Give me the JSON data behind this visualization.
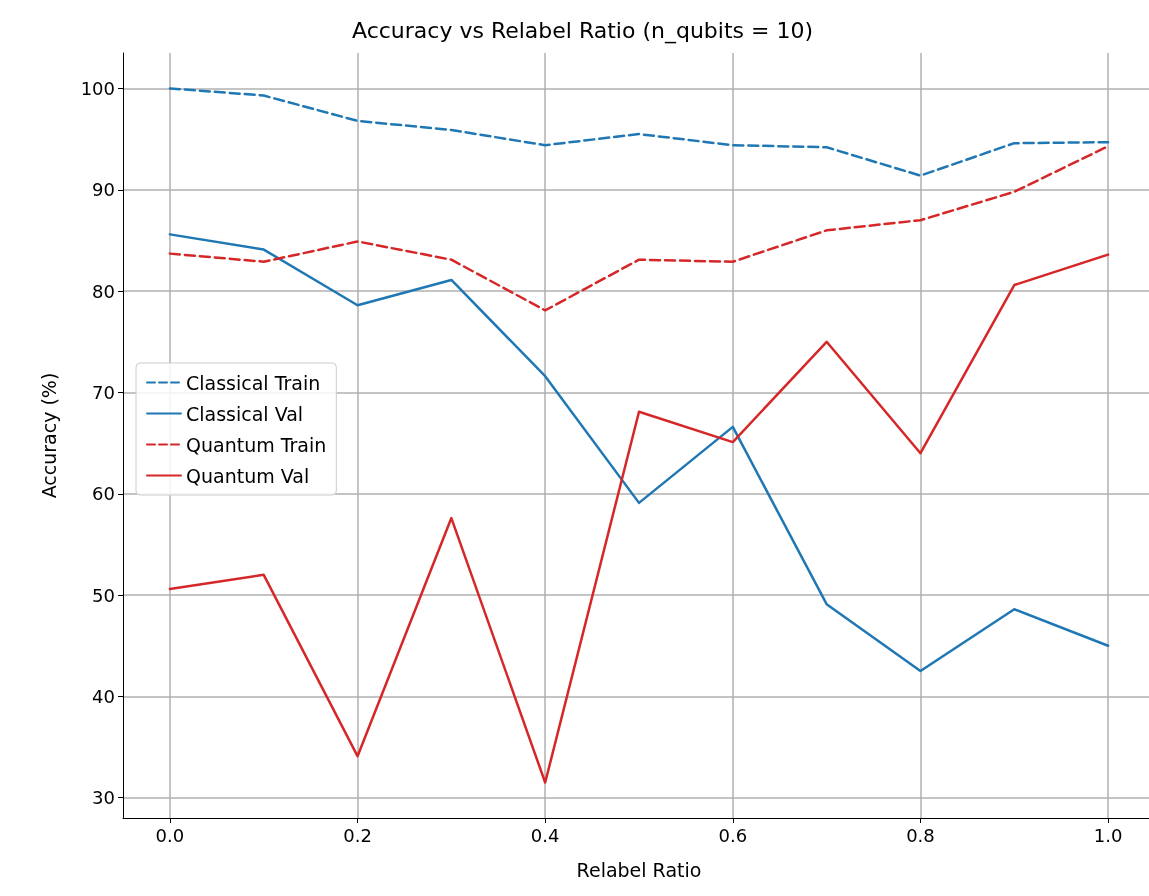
{
  "chart_data": {
    "type": "line",
    "title": "Accuracy vs Relabel Ratio (n_qubits = 10)",
    "xlabel": "Relabel Ratio",
    "ylabel": "Accuracy (%)",
    "x": [
      0.0,
      0.1,
      0.2,
      0.3,
      0.4,
      0.5,
      0.6,
      0.7,
      0.8,
      0.9,
      1.0
    ],
    "series": [
      {
        "name": "Classical Train",
        "color": "#1f77b4",
        "line_style": "dashed",
        "values": [
          100.0,
          99.3,
          96.8,
          95.9,
          94.4,
          95.5,
          94.4,
          94.2,
          91.4,
          94.6,
          94.7
        ]
      },
      {
        "name": "Classical Val",
        "color": "#1f77b4",
        "line_style": "solid",
        "values": [
          85.6,
          84.1,
          78.6,
          81.1,
          71.6,
          59.1,
          66.6,
          49.1,
          42.5,
          48.6,
          45.0
        ]
      },
      {
        "name": "Quantum Train",
        "color": "#d62728",
        "line_style": "dashed",
        "values": [
          83.7,
          82.9,
          84.9,
          83.1,
          78.1,
          83.1,
          82.9,
          86.0,
          87.0,
          89.8,
          94.3
        ]
      },
      {
        "name": "Quantum Val",
        "color": "#d62728",
        "line_style": "solid",
        "values": [
          50.6,
          52.0,
          34.1,
          57.6,
          31.5,
          68.1,
          65.1,
          75.0,
          64.0,
          80.6,
          83.6
        ]
      }
    ],
    "xlim": [
      -0.05,
      1.05
    ],
    "ylim": [
      28,
      103.5
    ],
    "xticks": [
      {
        "value": 0,
        "label": "0.0"
      },
      0.2,
      0.4,
      0.6,
      0.8,
      {
        "value": 1,
        "label": "1.0"
      }
    ],
    "yticks": [
      30,
      40,
      50,
      60,
      70,
      80,
      90,
      100
    ],
    "grid": true,
    "legend": "center left",
    "marker": "none"
  }
}
